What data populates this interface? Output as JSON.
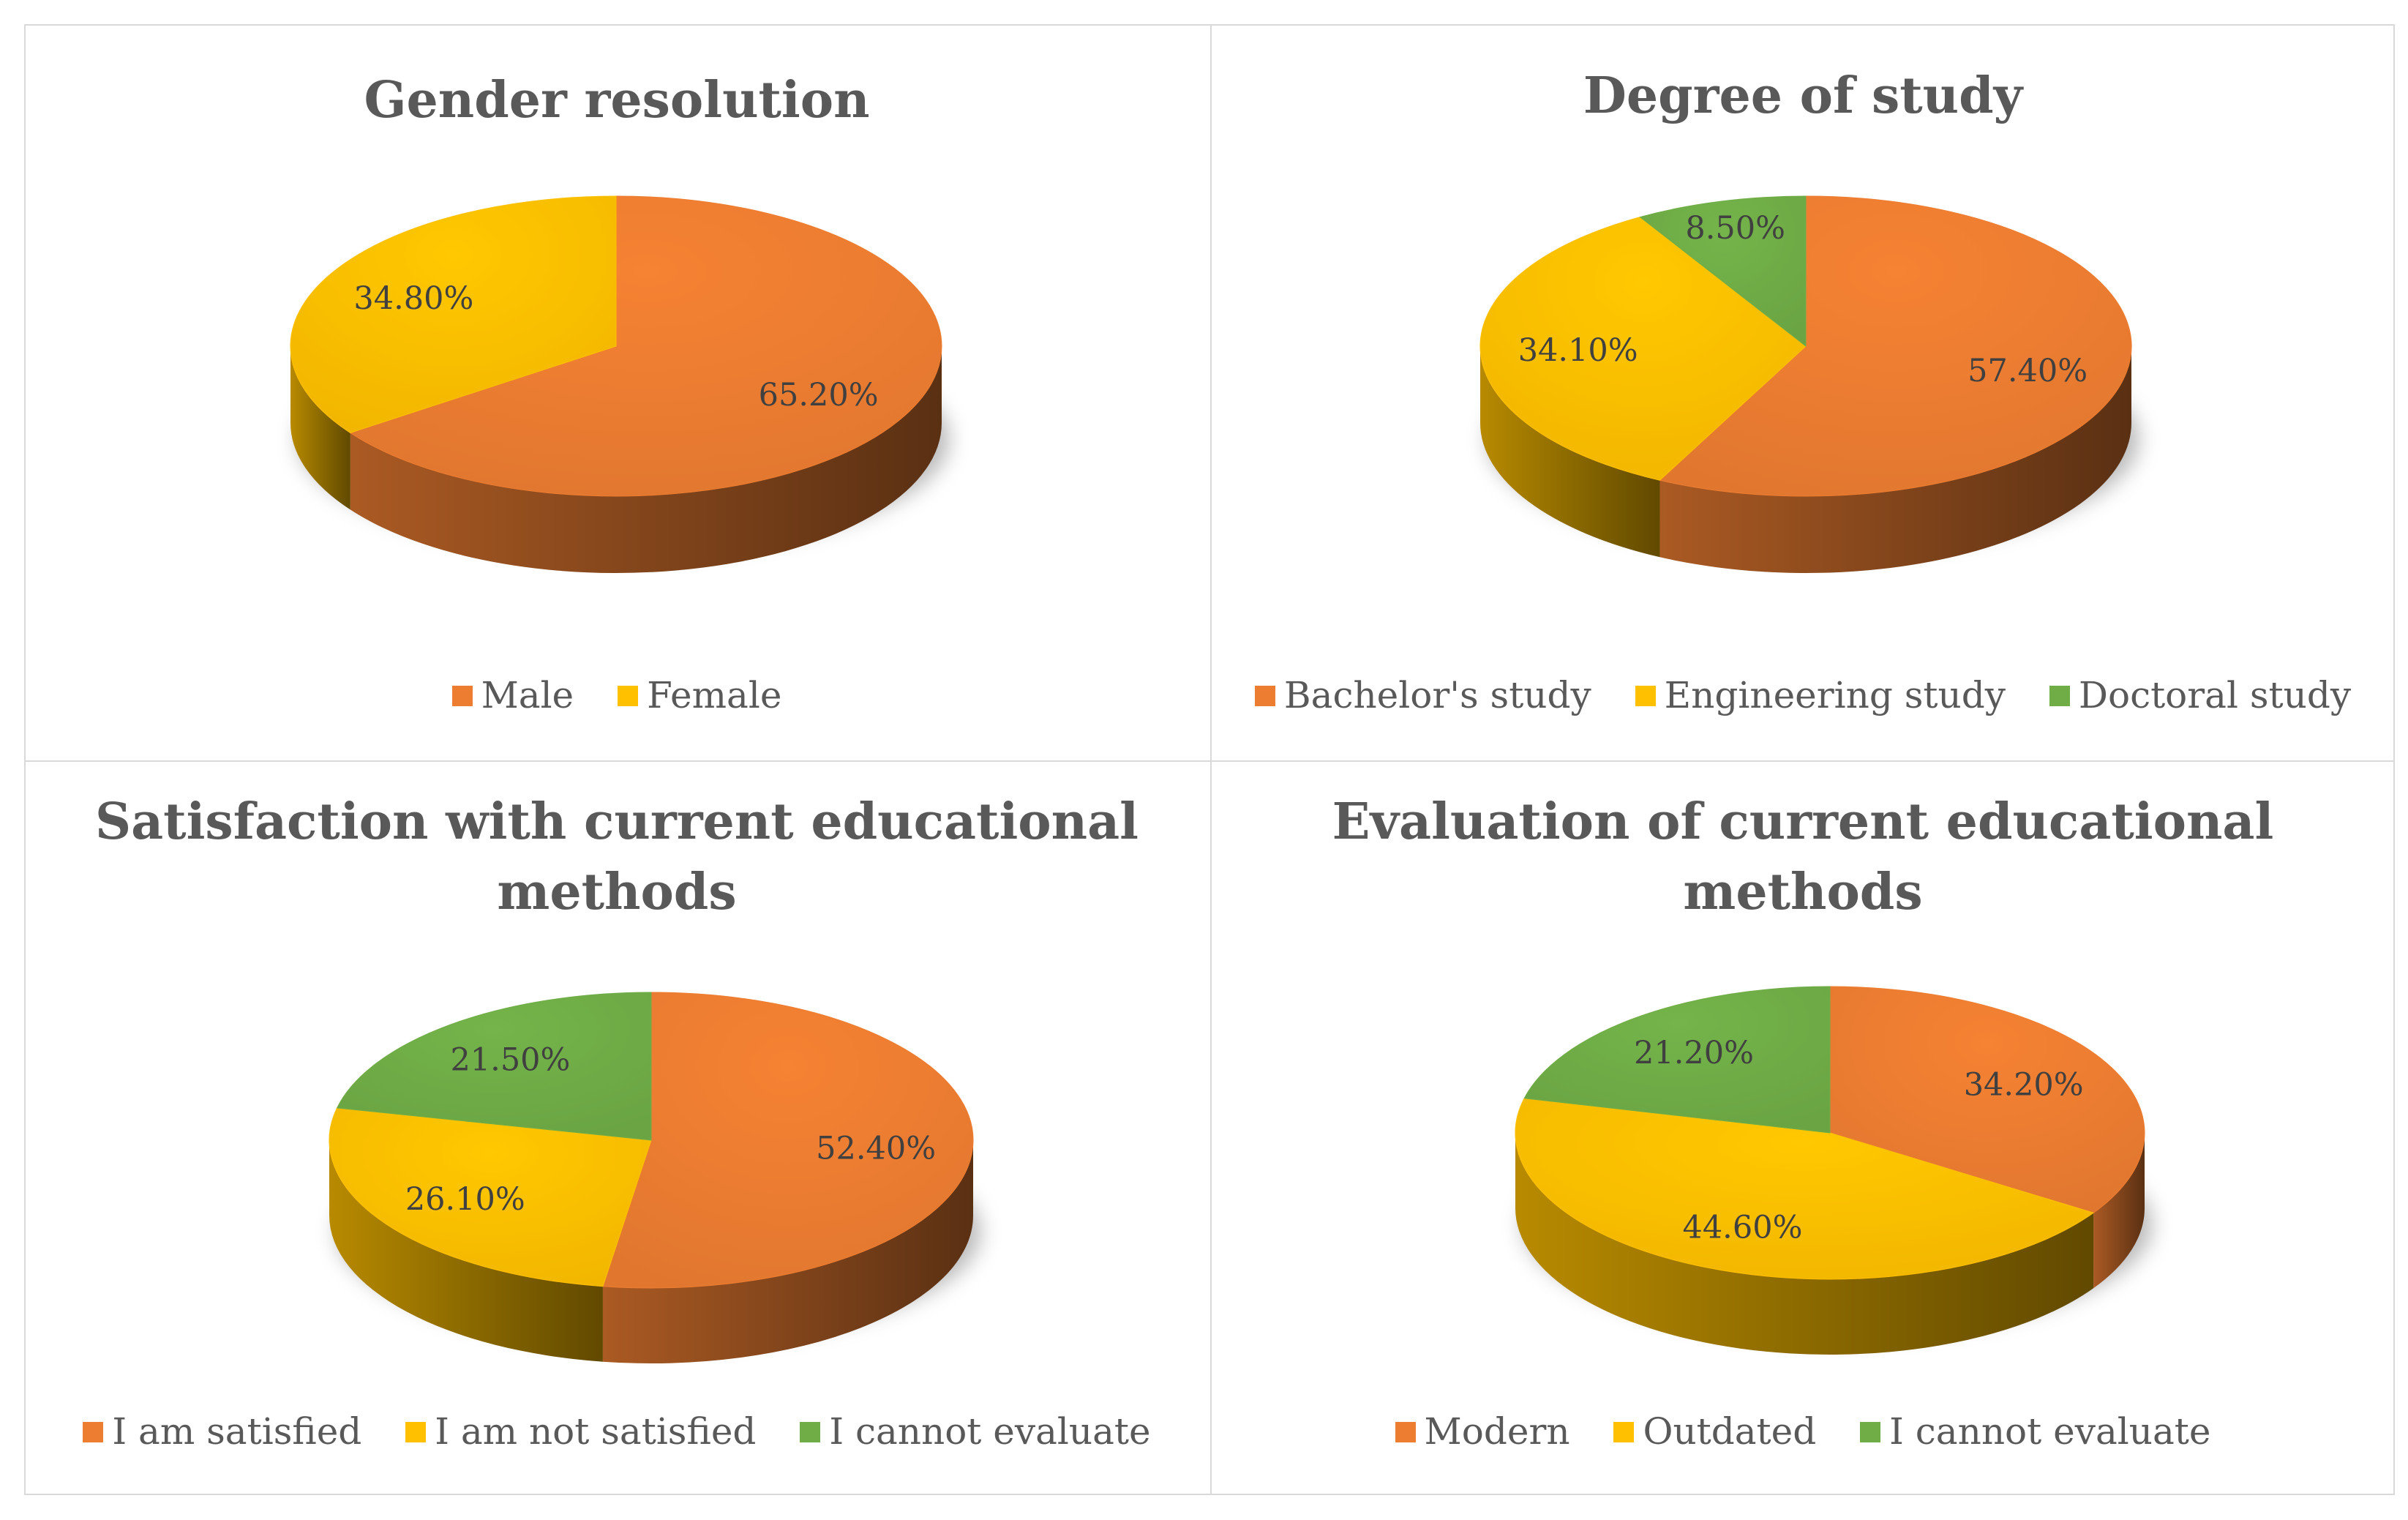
{
  "colors": {
    "orange": "#ED7D31",
    "yellow": "#FFC000",
    "green": "#70AD47",
    "border": "#d9d9d9",
    "text": "#595959"
  },
  "chart_data": [
    {
      "type": "pie",
      "title_lines": [
        "Gender resolution"
      ],
      "categories": [
        "Male",
        "Female"
      ],
      "values": [
        65.2,
        34.8
      ],
      "labels": [
        "65.20%",
        "34.80%"
      ],
      "colors": [
        "#ED7D31",
        "#FFC000"
      ],
      "legend_position": "bottom"
    },
    {
      "type": "pie",
      "title_lines": [
        "Degree of study"
      ],
      "categories": [
        "Bachelor's study",
        "Engineering study",
        "Doctoral study"
      ],
      "values": [
        57.4,
        34.1,
        8.5
      ],
      "labels": [
        "57.40%",
        "34.10%",
        "8.50%"
      ],
      "colors": [
        "#ED7D31",
        "#FFC000",
        "#70AD47"
      ],
      "legend_position": "bottom"
    },
    {
      "type": "pie",
      "title_lines": [
        "Satisfaction with current educational",
        "methods"
      ],
      "categories": [
        "I am satisfied",
        "I am not satisfied",
        "I cannot evaluate"
      ],
      "values": [
        52.4,
        26.1,
        21.5
      ],
      "labels": [
        "52.40%",
        "26.10%",
        "21.50%"
      ],
      "colors": [
        "#ED7D31",
        "#FFC000",
        "#70AD47"
      ],
      "legend_position": "bottom"
    },
    {
      "type": "pie",
      "title_lines": [
        "Evaluation of current educational",
        "methods"
      ],
      "categories": [
        "Modern",
        "Outdated",
        "I cannot evaluate"
      ],
      "values": [
        34.2,
        44.6,
        21.2
      ],
      "labels": [
        "34.20%",
        "44.60%",
        "21.20%"
      ],
      "colors": [
        "#ED7D31",
        "#FFC000",
        "#70AD47"
      ],
      "legend_position": "bottom"
    }
  ]
}
